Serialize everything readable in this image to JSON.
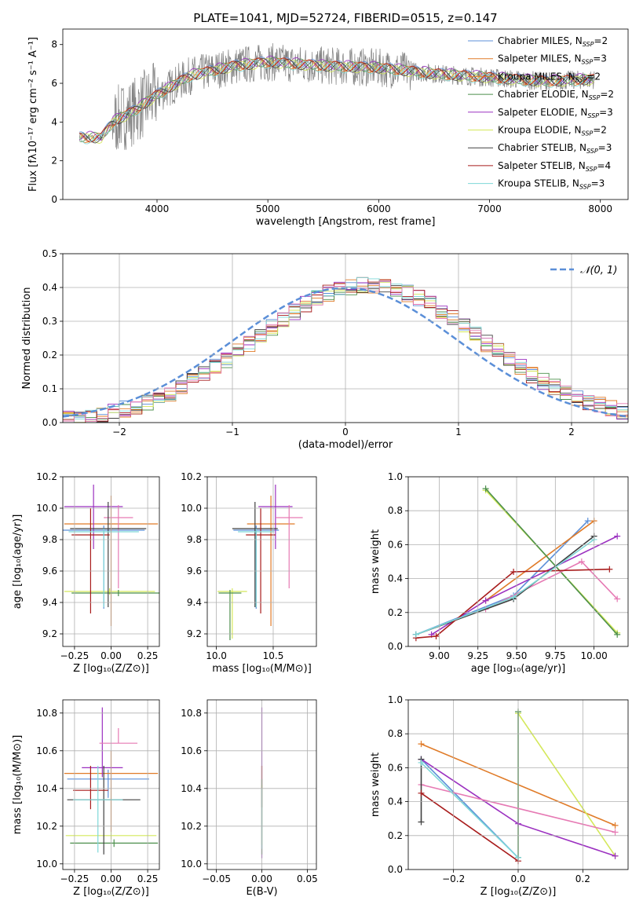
{
  "colors": {
    "Chabrier MILES": "#5b8fd8",
    "Salpeter MILES": "#e07b28",
    "Kroupa MILES": "#e07b28",
    "Chabrier ELODIE": "#4c8f4c",
    "Salpeter ELODIE": "#9b30c0",
    "Kroupa ELODIE": "#d4e85a",
    "Chabrier STELIB": "#404040",
    "Salpeter STELIB": "#a81c1c",
    "Kroupa STELIB": "#7ed8d8",
    "pink": "#e67ab4",
    "data": "#808080",
    "normal": "#5b8fd8"
  },
  "chart_data": [
    {
      "id": "spectrum",
      "type": "line",
      "title": "PLATE=1041, MJD=52724, FIBERID=0515, z=0.147",
      "xlabel": "wavelength [Angstrom, rest frame]",
      "ylabel": "Flux [fλ10⁻¹⁷ erg cm⁻² s⁻¹ A⁻¹]",
      "xlim": [
        3150,
        8250
      ],
      "ylim": [
        0,
        8.8
      ],
      "xticks": [
        4000,
        5000,
        6000,
        7000,
        8000
      ],
      "yticks": [
        0,
        2,
        4,
        6,
        8
      ],
      "legend": [
        {
          "label": "Chabrier MILES, N",
          "sub": "SSP",
          "eq": "=2",
          "color": "#5b8fd8"
        },
        {
          "label": "Salpeter MILES, N",
          "sub": "SSP",
          "eq": "=3",
          "color": "#e07b28"
        },
        {
          "label": "Kroupa MILES, N",
          "sub": "SSP",
          "eq": "=2",
          "color": "#e07b28"
        },
        {
          "label": "Chabrier ELODIE, N",
          "sub": "SSP",
          "eq": "=2",
          "color": "#4c8f4c"
        },
        {
          "label": "Salpeter ELODIE, N",
          "sub": "SSP",
          "eq": "=3",
          "color": "#9b30c0"
        },
        {
          "label": "Kroupa ELODIE, N",
          "sub": "SSP",
          "eq": "=2",
          "color": "#d4e85a"
        },
        {
          "label": "Chabrier STELIB, N",
          "sub": "SSP",
          "eq": "=3",
          "color": "#404040"
        },
        {
          "label": "Salpeter STELIB, N",
          "sub": "SSP",
          "eq": "=4",
          "color": "#a81c1c"
        },
        {
          "label": "Kroupa STELIB, N",
          "sub": "SSP",
          "eq": "=3",
          "color": "#7ed8d8"
        }
      ],
      "legend_position": "right",
      "continuum_x": [
        3300,
        3500,
        3600,
        3800,
        4000,
        4300,
        4700,
        5000,
        5500,
        6000,
        6500,
        7000,
        7500,
        7900
      ],
      "continuum_y": [
        3.2,
        3.2,
        4.0,
        4.6,
        5.4,
        6.4,
        6.9,
        7.1,
        6.9,
        6.8,
        6.5,
        6.3,
        6.1,
        6.2
      ]
    },
    {
      "id": "residuals",
      "type": "step",
      "xlabel": "(data-model)/error",
      "ylabel": "Normed distribution",
      "xlim": [
        -2.5,
        2.5
      ],
      "ylim": [
        0,
        0.5
      ],
      "xticks": [
        -2,
        -1,
        0,
        1,
        2
      ],
      "yticks": [
        0.0,
        0.1,
        0.2,
        0.3,
        0.4,
        0.5
      ],
      "legend": "𝒩(0, 1)",
      "legend_position": "top-right",
      "grid": true
    },
    {
      "id": "age-vs-Z",
      "type": "errorbar",
      "xlabel": "Z [log₁₀(Z/Z⊙)]",
      "ylabel": "age  [log₁₀(age/yr)]",
      "xlim": [
        -0.33,
        0.33
      ],
      "ylim": [
        9.12,
        10.2
      ],
      "xticks": [
        -0.25,
        0.0,
        0.25
      ],
      "yticks": [
        9.2,
        9.4,
        9.6,
        9.8,
        10.0,
        10.2
      ],
      "grid": true,
      "points": [
        {
          "x": -0.05,
          "y": 9.86,
          "xerr": 0.28,
          "yerr": [
            0.5,
            0.03
          ],
          "color": "#5b8fd8"
        },
        {
          "x": 0.0,
          "y": 9.9,
          "xerr": 0.32,
          "yerr": [
            0.65,
            0.18
          ],
          "color": "#e07b28"
        },
        {
          "x": -0.01,
          "y": 9.47,
          "xerr": 0.31,
          "yerr": [
            0.02,
            0.02
          ],
          "color": "#d4e85a"
        },
        {
          "x": 0.05,
          "y": 9.46,
          "xerr": 0.32,
          "yerr": [
            0.02,
            0.02
          ],
          "color": "#4c8f4c"
        },
        {
          "x": -0.12,
          "y": 10.01,
          "xerr": 0.2,
          "yerr": [
            0.27,
            0.14
          ],
          "color": "#9b30c0"
        },
        {
          "x": 0.05,
          "y": 9.94,
          "xerr": 0.1,
          "yerr": [
            0.45,
            0.08
          ],
          "color": "#e67ab4"
        },
        {
          "x": -0.02,
          "y": 9.87,
          "xerr": 0.26,
          "yerr": [
            0.5,
            0.17
          ],
          "color": "#404040"
        },
        {
          "x": -0.14,
          "y": 9.83,
          "xerr": 0.13,
          "yerr": [
            0.5,
            0.17
          ],
          "color": "#a81c1c"
        },
        {
          "x": -0.05,
          "y": 9.85,
          "xerr": 0.24,
          "yerr": [
            0.48,
            0.02
          ],
          "color": "#7ed8d8"
        }
      ]
    },
    {
      "id": "age-vs-mass",
      "type": "errorbar",
      "xlabel": "mass [log₁₀(M/M⊙)]",
      "ylabel": "",
      "xlim": [
        9.92,
        10.88
      ],
      "ylim": [
        9.12,
        10.2
      ],
      "xticks": [
        10.0,
        10.5
      ],
      "yticks": [
        9.2,
        9.4,
        9.6,
        9.8,
        10.0,
        10.2
      ],
      "grid": true,
      "points": [
        {
          "x": 10.35,
          "y": 9.86,
          "xerr": 0.2,
          "yerr": [
            0.5,
            0.03
          ],
          "color": "#5b8fd8"
        },
        {
          "x": 10.48,
          "y": 9.9,
          "xerr": 0.21,
          "yerr": [
            0.65,
            0.18
          ],
          "color": "#e07b28"
        },
        {
          "x": 10.14,
          "y": 9.47,
          "xerr": 0.13,
          "yerr": [
            0.3,
            0.02
          ],
          "color": "#d4e85a"
        },
        {
          "x": 10.12,
          "y": 9.46,
          "xerr": 0.1,
          "yerr": [
            0.3,
            0.02
          ],
          "color": "#4c8f4c"
        },
        {
          "x": 10.52,
          "y": 10.01,
          "xerr": 0.15,
          "yerr": [
            0.27,
            0.14
          ],
          "color": "#9b30c0"
        },
        {
          "x": 10.64,
          "y": 9.94,
          "xerr": 0.12,
          "yerr": [
            0.45,
            0.08
          ],
          "color": "#e67ab4"
        },
        {
          "x": 10.34,
          "y": 9.87,
          "xerr": 0.2,
          "yerr": [
            0.5,
            0.17
          ],
          "color": "#404040"
        },
        {
          "x": 10.39,
          "y": 9.83,
          "xerr": 0.13,
          "yerr": [
            0.5,
            0.17
          ],
          "color": "#a81c1c"
        },
        {
          "x": 10.35,
          "y": 9.85,
          "xerr": 0.16,
          "yerr": [
            0.48,
            0.02
          ],
          "color": "#7ed8d8"
        }
      ]
    },
    {
      "id": "weight-vs-age",
      "type": "line",
      "xlabel": "age  [log₁₀(age/yr)]",
      "ylabel": "mass weight",
      "xlim": [
        8.8,
        10.22
      ],
      "ylim": [
        0,
        1.0
      ],
      "xticks": [
        9.0,
        9.25,
        9.5,
        9.75,
        10.0
      ],
      "yticks": [
        0.0,
        0.2,
        0.4,
        0.6,
        0.8,
        1.0
      ],
      "grid": true,
      "series": [
        {
          "color": "#5b8fd8",
          "x": [
            8.85,
            9.48,
            9.96
          ],
          "y": [
            0.07,
            0.3,
            0.74
          ]
        },
        {
          "color": "#e07b28",
          "x": [
            9.3,
            10.0
          ],
          "y": [
            0.27,
            0.74
          ]
        },
        {
          "color": "#d4e85a",
          "x": [
            9.3,
            10.15
          ],
          "y": [
            0.92,
            0.08
          ]
        },
        {
          "color": "#4c8f4c",
          "x": [
            9.3,
            10.15
          ],
          "y": [
            0.93,
            0.07
          ]
        },
        {
          "color": "#9b30c0",
          "x": [
            8.95,
            9.3,
            10.15
          ],
          "y": [
            0.07,
            0.27,
            0.65
          ]
        },
        {
          "color": "#e67ab4",
          "x": [
            9.3,
            9.92,
            10.15
          ],
          "y": [
            0.22,
            0.5,
            0.28
          ]
        },
        {
          "color": "#404040",
          "x": [
            8.85,
            9.48,
            10.0
          ],
          "y": [
            0.07,
            0.28,
            0.65
          ]
        },
        {
          "color": "#a81c1c",
          "x": [
            8.85,
            8.98,
            9.48,
            10.1
          ],
          "y": [
            0.05,
            0.06,
            0.44,
            0.455
          ]
        },
        {
          "color": "#7ed8d8",
          "x": [
            8.85,
            9.48,
            10.0
          ],
          "y": [
            0.07,
            0.29,
            0.63
          ]
        }
      ]
    },
    {
      "id": "mass-vs-Z",
      "type": "errorbar",
      "xlabel": "Z [log₁₀(Z/Z⊙)]",
      "ylabel": "mass [log₁₀(M/M⊙)]",
      "xlim": [
        -0.33,
        0.33
      ],
      "ylim": [
        9.97,
        10.87
      ],
      "xticks": [
        -0.25,
        0.0,
        0.25
      ],
      "yticks": [
        10.0,
        10.2,
        10.4,
        10.6,
        10.8
      ],
      "grid": true,
      "points": [
        {
          "x": -0.02,
          "y": 10.45,
          "xerr": 0.28,
          "yerr": [
            0.1,
            0.05
          ],
          "color": "#5b8fd8"
        },
        {
          "x": 0.0,
          "y": 10.48,
          "xerr": 0.32,
          "yerr": [
            0.31,
            0.12
          ],
          "color": "#e07b28"
        },
        {
          "x": 0.0,
          "y": 10.15,
          "xerr": 0.31,
          "yerr": [
            0.02,
            0.02
          ],
          "color": "#d4e85a"
        },
        {
          "x": 0.02,
          "y": 10.11,
          "xerr": 0.3,
          "yerr": [
            0.02,
            0.02
          ],
          "color": "#4c8f4c"
        },
        {
          "x": -0.06,
          "y": 10.51,
          "xerr": 0.14,
          "yerr": [
            0.05,
            0.32
          ],
          "color": "#9b30c0"
        },
        {
          "x": 0.05,
          "y": 10.64,
          "xerr": 0.13,
          "yerr": [
            0.0,
            0.08
          ],
          "color": "#e67ab4"
        },
        {
          "x": -0.05,
          "y": 10.34,
          "xerr": 0.25,
          "yerr": [
            0.29,
            0.18
          ],
          "color": "#404040"
        },
        {
          "x": -0.14,
          "y": 10.39,
          "xerr": 0.12,
          "yerr": [
            0.1,
            0.13
          ],
          "color": "#a81c1c"
        },
        {
          "x": -0.09,
          "y": 10.34,
          "xerr": 0.17,
          "yerr": [
            0.28,
            0.18
          ],
          "color": "#7ed8d8"
        }
      ]
    },
    {
      "id": "mass-vs-EBV",
      "type": "errorbar",
      "xlabel": "E(B-V)",
      "ylabel": "",
      "xlim": [
        -0.06,
        0.06
      ],
      "ylim": [
        9.97,
        10.87
      ],
      "xticks": [
        -0.05,
        0.0,
        0.05
      ],
      "yticks": [
        10.0,
        10.2,
        10.4,
        10.6,
        10.8
      ],
      "grid": true,
      "points": [
        {
          "x": 0,
          "y": 10.5,
          "xerr": 0,
          "yerr": [
            0.47,
            0.33
          ],
          "color": "#9b30c0"
        },
        {
          "x": 0,
          "y": 10.45,
          "xerr": 0,
          "yerr": [
            0.15,
            0.07
          ],
          "color": "#a81c1c"
        },
        {
          "x": 0,
          "y": 10.3,
          "xerr": 0,
          "yerr": [
            0.2,
            0.12
          ],
          "color": "#d4e85a"
        },
        {
          "x": 0,
          "y": 10.35,
          "xerr": 0,
          "yerr": [
            0.3,
            0.1
          ],
          "color": "#4c8f4c"
        },
        {
          "x": 0,
          "y": 10.3,
          "xerr": 0,
          "yerr": [
            0.22,
            0.1
          ],
          "color": "#7ed8d8"
        }
      ]
    },
    {
      "id": "weight-vs-Z",
      "type": "line",
      "xlabel": "Z [log₁₀(Z/Z⊙)]",
      "ylabel": "mass weight",
      "xlim": [
        -0.34,
        0.34
      ],
      "ylim": [
        0,
        1.0
      ],
      "xticks": [
        -0.2,
        0.0,
        0.2
      ],
      "yticks": [
        0.0,
        0.2,
        0.4,
        0.6,
        0.8,
        1.0
      ],
      "grid": true,
      "series": [
        {
          "color": "#5b8fd8",
          "x": [
            -0.3,
            0.0
          ],
          "y": [
            0.65,
            0.07
          ]
        },
        {
          "color": "#e07b28",
          "x": [
            -0.3,
            0.3
          ],
          "y": [
            0.74,
            0.26
          ]
        },
        {
          "color": "#d4e85a",
          "x": [
            0.0,
            0.3
          ],
          "y": [
            0.92,
            0.08
          ]
        },
        {
          "color": "#4c8f4c",
          "x": [
            0.0,
            0.0
          ],
          "y": [
            0.93,
            0.07
          ]
        },
        {
          "color": "#9b30c0",
          "x": [
            -0.3,
            0.0,
            0.3
          ],
          "y": [
            0.65,
            0.27,
            0.08
          ]
        },
        {
          "color": "#e67ab4",
          "x": [
            -0.3,
            0.3
          ],
          "y": [
            0.5,
            0.22
          ]
        },
        {
          "color": "#404040",
          "x": [
            -0.3,
            -0.3
          ],
          "y": [
            0.28,
            0.65
          ]
        },
        {
          "color": "#a81c1c",
          "x": [
            -0.3,
            0.0
          ],
          "y": [
            0.45,
            0.05
          ]
        },
        {
          "color": "#7ed8d8",
          "x": [
            -0.3,
            0.0
          ],
          "y": [
            0.63,
            0.07
          ]
        }
      ]
    }
  ]
}
